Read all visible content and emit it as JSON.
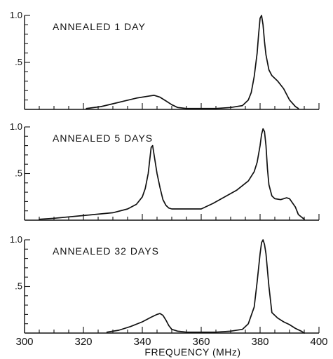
{
  "chart_data": {
    "type": "line",
    "xlabel": "FREQUENCY (MHz)",
    "xlim": [
      300,
      400
    ],
    "xticks": [
      300,
      320,
      340,
      360,
      380,
      400
    ],
    "xtick_labels": [
      "300",
      "320",
      "340",
      "360",
      "380",
      "400"
    ],
    "panels": [
      {
        "title": "ANNEALED 1 DAY",
        "ylim": [
          0,
          1.0
        ],
        "ytick_labels": [
          {
            "value": 1.0,
            "label": "1.0"
          },
          {
            "value": 0.5,
            "label": ".5"
          }
        ],
        "x": [
          321,
          326,
          330,
          334,
          338,
          342,
          344,
          346,
          348,
          350,
          352,
          355,
          360,
          365,
          370,
          374,
          376,
          377,
          378,
          379,
          379.5,
          380,
          380.5,
          381,
          381.5,
          382,
          383,
          384,
          386,
          388,
          390,
          392,
          393
        ],
        "y": [
          0.01,
          0.03,
          0.06,
          0.09,
          0.12,
          0.14,
          0.15,
          0.13,
          0.09,
          0.05,
          0.02,
          0.01,
          0.01,
          0.01,
          0.02,
          0.04,
          0.1,
          0.18,
          0.35,
          0.6,
          0.8,
          0.97,
          1.0,
          0.9,
          0.72,
          0.58,
          0.42,
          0.36,
          0.3,
          0.22,
          0.1,
          0.03,
          0.01
        ]
      },
      {
        "title": "ANNEALED 5 DAYS",
        "ylim": [
          0,
          1.0
        ],
        "ytick_labels": [
          {
            "value": 1.0,
            "label": "1.0"
          },
          {
            "value": 0.5,
            "label": ".5"
          }
        ],
        "x": [
          305,
          310,
          320,
          330,
          335,
          338,
          340,
          341,
          342,
          342.5,
          343,
          343.5,
          344,
          345,
          346,
          347,
          348,
          349,
          350,
          352,
          355,
          358,
          360,
          364,
          368,
          372,
          376,
          378,
          379,
          380,
          380.5,
          381,
          381.5,
          382,
          382.5,
          383,
          384,
          385,
          387,
          389,
          390,
          392,
          393,
          395
        ],
        "y": [
          0.01,
          0.02,
          0.05,
          0.08,
          0.12,
          0.17,
          0.25,
          0.34,
          0.5,
          0.64,
          0.78,
          0.8,
          0.7,
          0.5,
          0.35,
          0.22,
          0.16,
          0.13,
          0.12,
          0.12,
          0.12,
          0.12,
          0.12,
          0.18,
          0.25,
          0.32,
          0.42,
          0.52,
          0.62,
          0.8,
          0.92,
          0.98,
          0.95,
          0.8,
          0.55,
          0.38,
          0.26,
          0.23,
          0.22,
          0.24,
          0.23,
          0.14,
          0.06,
          0.01
        ]
      },
      {
        "title": "ANNEALED 32 DAYS",
        "ylim": [
          0,
          1.0
        ],
        "ytick_labels": [
          {
            "value": 1.0,
            "label": "1.0"
          },
          {
            "value": 0.5,
            "label": ".5"
          }
        ],
        "x": [
          328,
          332,
          336,
          340,
          343,
          345,
          346,
          347,
          348,
          349,
          350,
          352,
          355,
          360,
          365,
          370,
          374,
          376,
          378,
          379,
          380,
          380.5,
          381,
          381.5,
          382,
          383,
          384,
          386,
          388,
          390,
          392,
          394,
          395
        ],
        "y": [
          0.01,
          0.03,
          0.07,
          0.12,
          0.17,
          0.2,
          0.21,
          0.19,
          0.14,
          0.08,
          0.04,
          0.02,
          0.01,
          0.01,
          0.01,
          0.02,
          0.04,
          0.1,
          0.28,
          0.55,
          0.85,
          0.97,
          1.0,
          0.95,
          0.85,
          0.5,
          0.22,
          0.16,
          0.12,
          0.09,
          0.05,
          0.02,
          0.0
        ]
      }
    ]
  }
}
